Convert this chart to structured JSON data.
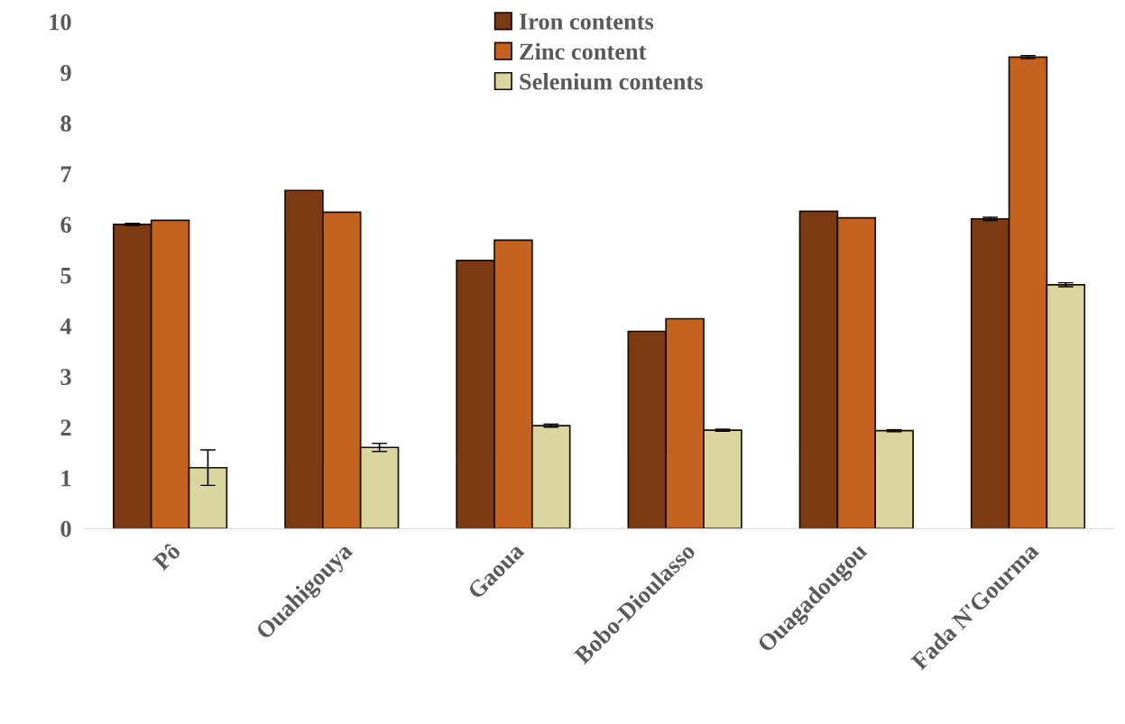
{
  "chart_data": {
    "type": "bar",
    "categories": [
      "Pô",
      "Ouahigouya",
      "Gaoua",
      "Bobo-Dioulasso",
      "Ouagadougou",
      "Fada N'Gourma"
    ],
    "series": [
      {
        "name": "Iron contents",
        "color": "#7b3a12",
        "values": [
          6.0,
          6.67,
          5.29,
          3.89,
          6.26,
          6.11
        ],
        "errors": [
          0.02,
          null,
          null,
          null,
          null,
          0.03
        ]
      },
      {
        "name": "Zinc content",
        "color": "#c4621f",
        "values": [
          6.08,
          6.24,
          5.69,
          4.14,
          6.13,
          9.3
        ],
        "errors": [
          null,
          null,
          null,
          null,
          null,
          0.03
        ]
      },
      {
        "name": "Selenium contents",
        "color": "#d9d6a0",
        "values": [
          1.2,
          1.6,
          2.03,
          1.94,
          1.93,
          4.81
        ],
        "errors": [
          0.35,
          0.08,
          0.03,
          0.02,
          0.02,
          0.04
        ]
      }
    ],
    "ylim": [
      0,
      10
    ],
    "yticks": [
      0,
      1,
      2,
      3,
      4,
      5,
      6,
      7,
      8,
      9,
      10
    ],
    "grid": false,
    "legend": "top"
  }
}
